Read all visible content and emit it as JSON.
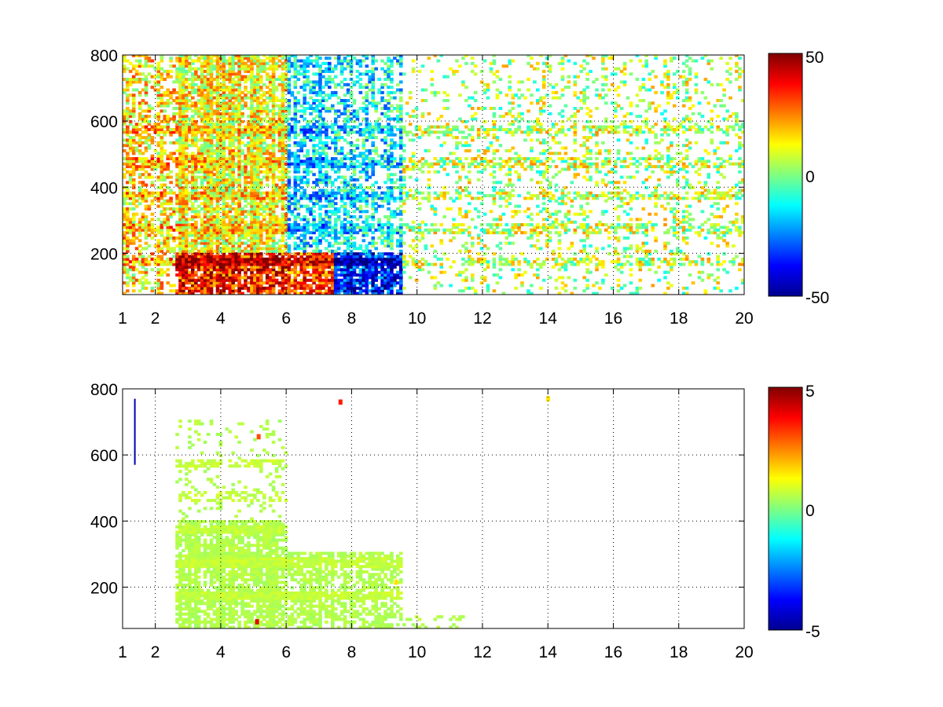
{
  "chart_data": [
    {
      "type": "heatmap",
      "title": "",
      "xlabel": "",
      "ylabel": "",
      "xlim": [
        1,
        20
      ],
      "ylim": [
        75,
        800
      ],
      "grid": true,
      "grid_style": "dotted",
      "x_ticks": [
        "1",
        "2",
        "4",
        "6",
        "8",
        "10",
        "12",
        "14",
        "16",
        "18",
        "20"
      ],
      "y_ticks": [
        "200",
        "400",
        "600",
        "800"
      ],
      "colormap": "jet",
      "color_range": [
        -50,
        50
      ],
      "colorbar_ticks": [
        "50",
        "0",
        "-50"
      ],
      "bands_y": [
        170,
        270,
        370,
        470,
        570
      ],
      "description_note": "",
      "regions": [
        {
          "x": [
            1.0,
            2.6
          ],
          "y": [
            75,
            800
          ],
          "level": 15,
          "density": 0.45
        },
        {
          "x": [
            2.6,
            6.0
          ],
          "y": [
            75,
            200
          ],
          "level": 35,
          "density": 0.95
        },
        {
          "x": [
            2.6,
            6.0
          ],
          "y": [
            200,
            800
          ],
          "level": 12,
          "density": 0.8
        },
        {
          "x": [
            6.0,
            7.4
          ],
          "y": [
            75,
            200
          ],
          "level": 30,
          "density": 0.9
        },
        {
          "x": [
            6.0,
            7.4
          ],
          "y": [
            200,
            800
          ],
          "level": -15,
          "density": 0.55
        },
        {
          "x": [
            7.4,
            9.5
          ],
          "y": [
            75,
            200
          ],
          "level": -35,
          "density": 0.9
        },
        {
          "x": [
            7.4,
            9.5
          ],
          "y": [
            200,
            800
          ],
          "level": -12,
          "density": 0.45
        },
        {
          "x": [
            9.5,
            12.0
          ],
          "y": [
            75,
            800
          ],
          "level": 5,
          "density": 0.15
        },
        {
          "x": [
            12.0,
            20.0
          ],
          "y": [
            75,
            800
          ],
          "level": 5,
          "density": 0.18
        }
      ]
    },
    {
      "type": "heatmap",
      "title": "",
      "xlabel": "",
      "ylabel": "",
      "xlim": [
        1,
        20
      ],
      "ylim": [
        75,
        800
      ],
      "grid": true,
      "grid_style": "dotted",
      "x_ticks": [
        "1",
        "2",
        "4",
        "6",
        "8",
        "10",
        "12",
        "14",
        "16",
        "18",
        "20"
      ],
      "y_ticks": [
        "200",
        "400",
        "600",
        "800"
      ],
      "colormap": "jet",
      "color_range": [
        -5,
        5
      ],
      "colorbar_ticks": [
        "5",
        "0",
        "-5"
      ],
      "bands_y": [
        170,
        270,
        370,
        470,
        570
      ],
      "regions": [
        {
          "x": [
            2.6,
            6.0
          ],
          "y": [
            75,
            400
          ],
          "level": 0.5,
          "density": 0.75
        },
        {
          "x": [
            2.6,
            6.0
          ],
          "y": [
            400,
            700
          ],
          "level": 0.5,
          "density": 0.12
        },
        {
          "x": [
            6.0,
            7.4
          ],
          "y": [
            75,
            300
          ],
          "level": 0.5,
          "density": 0.65
        },
        {
          "x": [
            7.4,
            9.5
          ],
          "y": [
            75,
            300
          ],
          "level": 0.5,
          "density": 0.55
        },
        {
          "x": [
            9.5,
            11.5
          ],
          "y": [
            75,
            110
          ],
          "level": 0.5,
          "density": 0.25
        }
      ],
      "outliers": [
        {
          "x": 1.35,
          "y": [
            570,
            770
          ],
          "value": -4.5
        },
        {
          "x": 5.05,
          "y": 95,
          "value": 4
        },
        {
          "x": 5.1,
          "y": 655,
          "value": 3
        },
        {
          "x": 7.6,
          "y": 760,
          "value": 3.5
        },
        {
          "x": 13.95,
          "y": 770,
          "value": 1.5
        },
        {
          "x": 9.3,
          "y": 215,
          "value": 1.5
        }
      ]
    }
  ]
}
